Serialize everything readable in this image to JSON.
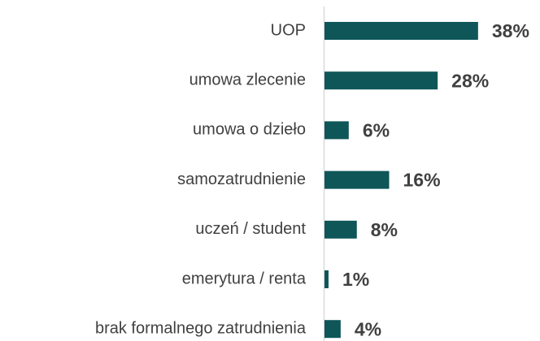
{
  "chart_data": {
    "type": "bar",
    "orientation": "horizontal",
    "categories": [
      "UOP",
      "umowa zlecenie",
      "umowa o dzieło",
      "samozatrudnienie",
      "uczeń / student",
      "emerytura / renta",
      "brak formalnego zatrudnienia"
    ],
    "values": [
      38,
      28,
      6,
      16,
      8,
      1,
      4
    ],
    "value_labels": [
      "38%",
      "28%",
      "6%",
      "16%",
      "8%",
      "1%",
      "4%"
    ],
    "color": "#0f5658"
  }
}
